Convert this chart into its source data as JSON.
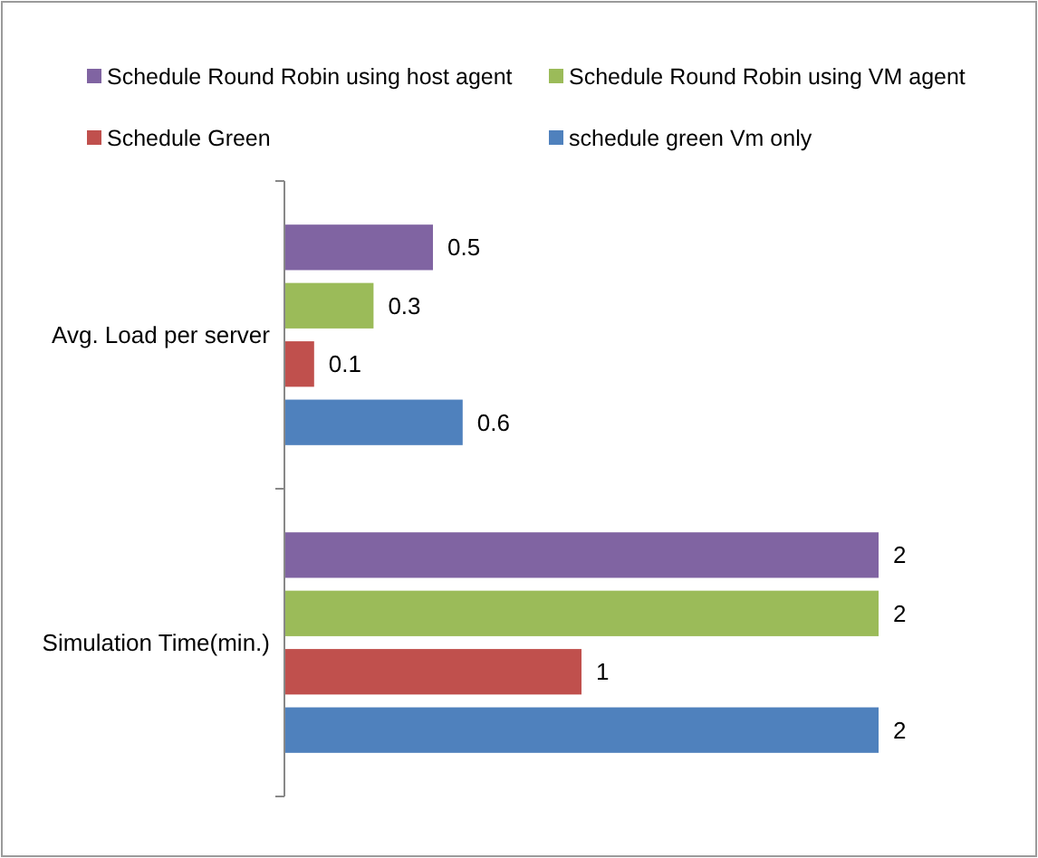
{
  "chart_data": {
    "type": "bar",
    "orientation": "horizontal",
    "categories": [
      "Avg. Load per server",
      "Simulation Time(min.)"
    ],
    "series": [
      {
        "name": "Schedule Round Robin using host agent",
        "color": "#8064a2",
        "values": [
          0.5,
          2
        ]
      },
      {
        "name": "Schedule Round Robin using VM agent",
        "color": "#9bbb59",
        "values": [
          0.3,
          2
        ]
      },
      {
        "name": "Schedule Green",
        "color": "#c0504d",
        "values": [
          0.1,
          1
        ]
      },
      {
        "name": "schedule green Vm only",
        "color": "#4f81bd",
        "values": [
          0.6,
          2
        ]
      }
    ],
    "data_labels": true,
    "legend": "top",
    "grid": false
  }
}
